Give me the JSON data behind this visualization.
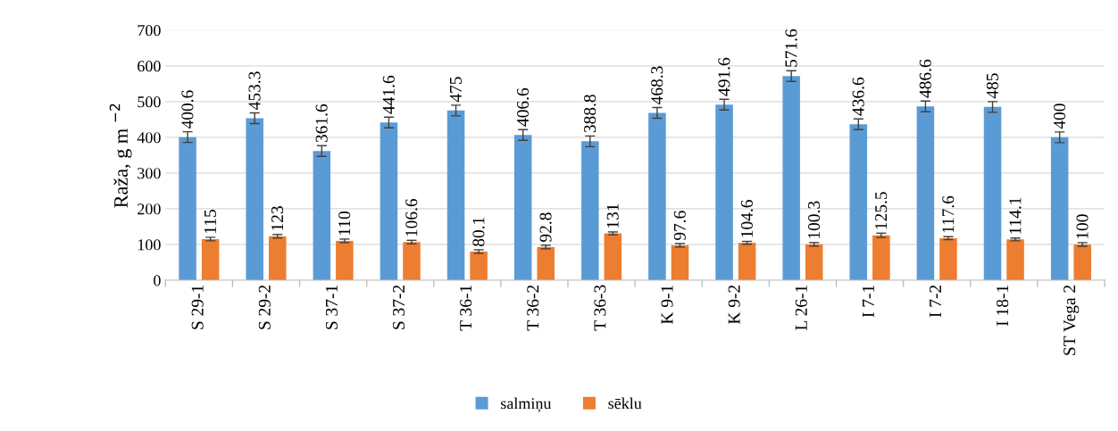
{
  "chart_data": {
    "type": "bar",
    "ylabel": "Raža, g m $^{−2}$",
    "categories": [
      "S 29-1",
      "S 29-2",
      "S 37-1",
      "S 37-2",
      "T 36-1",
      "T 36-2",
      "T 36-3",
      "K 9-1",
      "K 9-2",
      "L 26-1",
      "I 7-1",
      "I 7-2",
      "I 18-1",
      "ST Vega 2"
    ],
    "series": [
      {
        "name": "salmiņu",
        "color": "#5b9bd5",
        "values": [
          400.6,
          453.3,
          361.6,
          441.6,
          475,
          406.6,
          388.8,
          468.3,
          491.6,
          571.6,
          436.6,
          486.6,
          485,
          400
        ],
        "errors": [
          15,
          15,
          15,
          15,
          15,
          15,
          15,
          15,
          15,
          15,
          15,
          15,
          15,
          15
        ]
      },
      {
        "name": "sēklu",
        "color": "#ed7d31",
        "values": [
          115,
          123,
          110,
          106.6,
          80.1,
          92.8,
          131,
          97.6,
          104.6,
          100.3,
          125.5,
          117.6,
          114.1,
          100
        ],
        "errors": [
          5,
          5,
          5,
          5,
          5,
          5,
          4,
          5,
          4,
          5,
          6,
          4,
          4,
          5
        ]
      }
    ],
    "ylim": [
      0,
      700
    ],
    "yticks": [
      0,
      100,
      200,
      300,
      400,
      500,
      600,
      700
    ],
    "grid": "y",
    "legend": "bottom",
    "data_labels": true
  }
}
